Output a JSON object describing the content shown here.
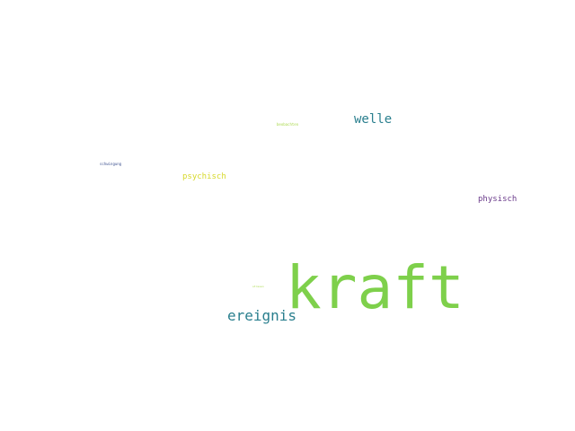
{
  "words": {
    "kraft": {
      "text": "kraft",
      "color": "#7ed04b"
    },
    "ereignis": {
      "text": "ereignis",
      "color": "#2a7f8e"
    },
    "welle": {
      "text": "welle",
      "color": "#2a7f8e"
    },
    "physisch": {
      "text": "physisch",
      "color": "#6a3a8a"
    },
    "psychisch": {
      "text": "psychisch",
      "color": "#d7d92a"
    },
    "beobachten": {
      "text": "beobachten",
      "color": "#a9d84a"
    },
    "schwingung": {
      "text": "schwingung",
      "color": "#3a4f8e"
    },
    "streuen": {
      "text": "streuen",
      "color": "#a9d84a"
    }
  }
}
